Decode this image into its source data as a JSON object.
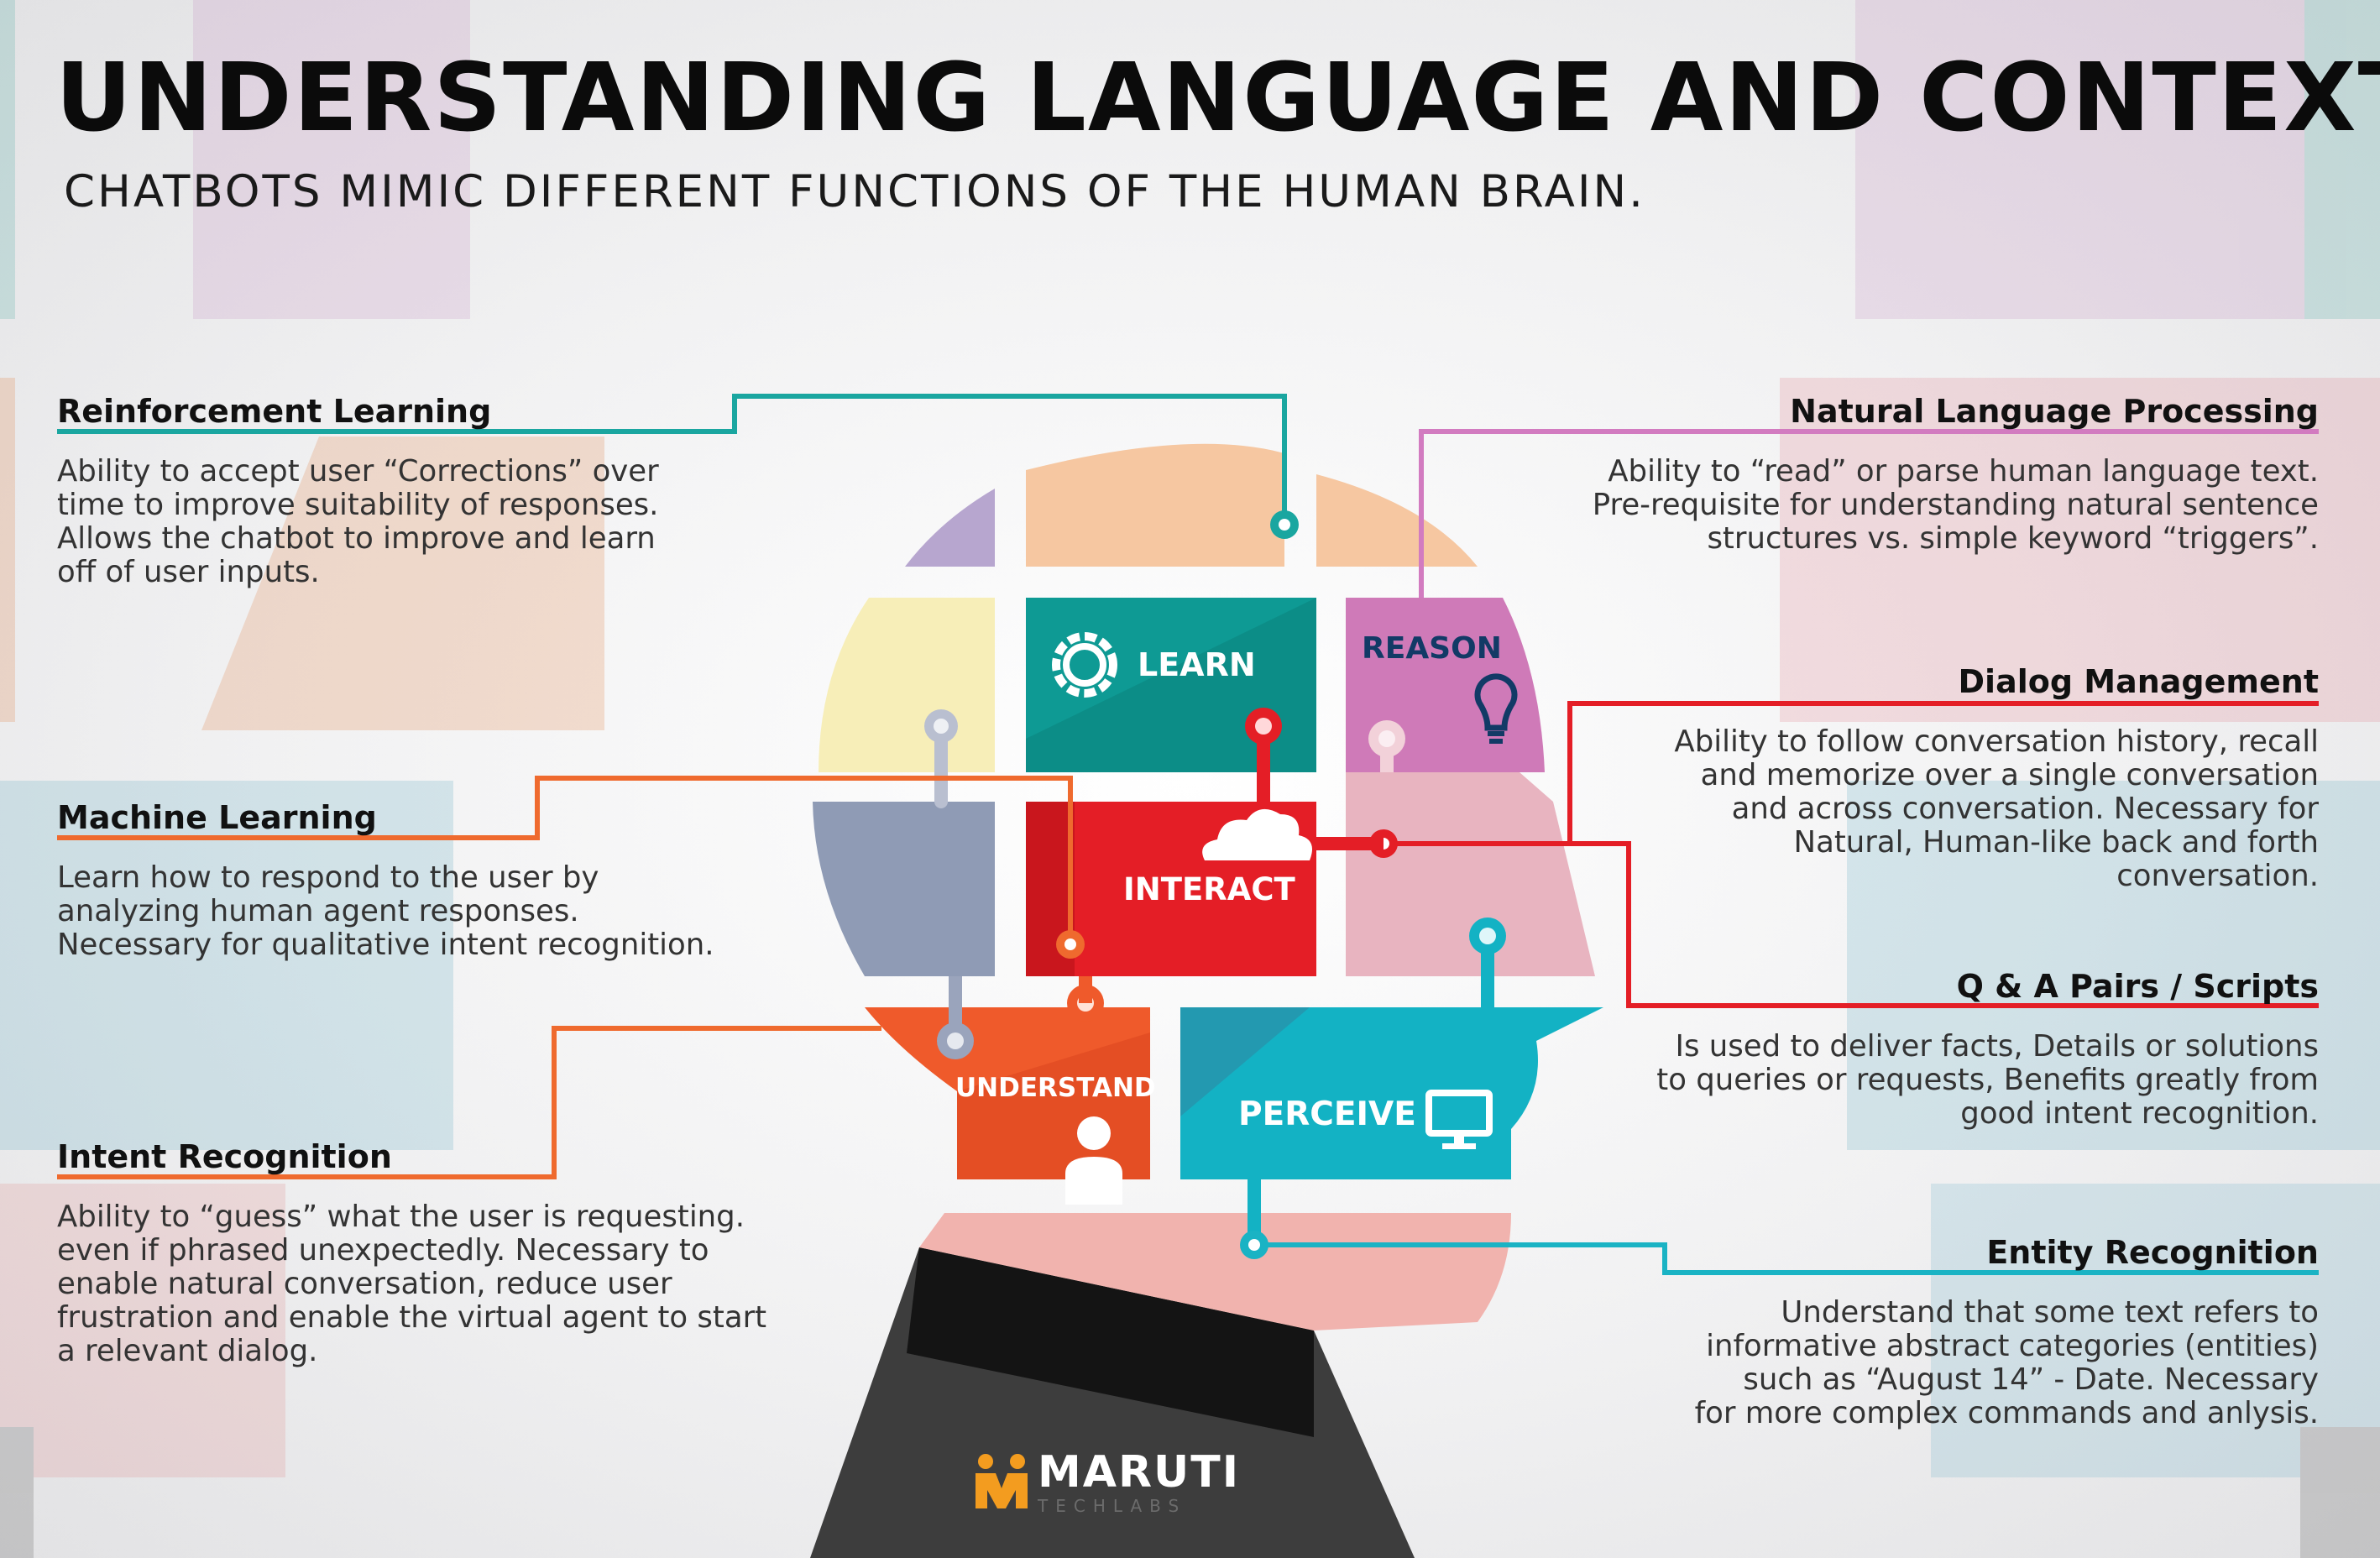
{
  "header": {
    "title": "UNDERSTANDING LANGUAGE AND CONTEXT",
    "subtitle": "CHATBOTS MIMIC DIFFERENT FUNCTIONS OF THE HUMAN BRAIN."
  },
  "left_blocks": [
    {
      "title": "Reinforcement Learning",
      "lines": [
        "Ability to accept user “Corrections” over",
        "time to improve suitability of responses.",
        "Allows the chatbot to improve and learn",
        "off of user inputs."
      ],
      "color": "#1aa6a0"
    },
    {
      "title": "Machine Learning",
      "lines": [
        "Learn how to respond to the user by",
        "analyzing human agent responses.",
        "Necessary for qualitative intent recognition."
      ],
      "color": "#ef6a2e"
    },
    {
      "title": "Intent Recognition",
      "lines": [
        "Ability to “guess” what the user is requesting.",
        "even if phrased unexpectedly. Necessary to",
        "enable natural conversation, reduce user",
        "frustration and enable the virtual agent to start",
        "a relevant dialog."
      ],
      "color": "#ef6a2e"
    }
  ],
  "right_blocks": [
    {
      "title": "Natural Language Processing",
      "lines": [
        "Ability to “read” or parse human language text.",
        "Pre-requisite for understanding natural sentence",
        "structures vs. simple keyword “triggers”."
      ],
      "color": "#d27bc0"
    },
    {
      "title": "Dialog Management",
      "lines": [
        "Ability to follow conversation history, recall",
        "and memorize over a single conversation",
        "and across conversation. Necessary for",
        "Natural, Human-like back and forth",
        "conversation."
      ],
      "color": "#e41e26"
    },
    {
      "title": "Q & A Pairs / Scripts",
      "lines": [
        "Is used to deliver facts, Details or solutions",
        "to queries or requests, Benefits greatly from",
        "good intent recognition."
      ],
      "color": "#e41e26"
    },
    {
      "title": "Entity Recognition",
      "lines": [
        "Understand that some text refers to",
        "informative abstract categories (entities)",
        "such as “August 14” - Date. Necessary",
        "for more complex commands and anlysis."
      ],
      "color": "#1ab3c4"
    }
  ],
  "brain_pieces": {
    "learn": "LEARN",
    "reason": "REASON",
    "interact": "INTERACT",
    "understand": "UNDERSTAND",
    "perceive": "PERCEIVE"
  },
  "piece_icons": {
    "learn": "gear-icon",
    "reason": "lightbulb-icon",
    "interact": "cloud-icon",
    "understand": "person-icon",
    "perceive": "monitor-icon"
  },
  "colors": {
    "learn": "#0e9a94",
    "reason": "#cf7ab8",
    "interact": "#e41e26",
    "understand": "#ef5a2b",
    "perceive": "#13b2c4",
    "suit": "#3a3a3a",
    "logo_orange": "#f39c1f"
  },
  "logo": {
    "name": "MARUTI",
    "tagline": "TECHLABS"
  }
}
